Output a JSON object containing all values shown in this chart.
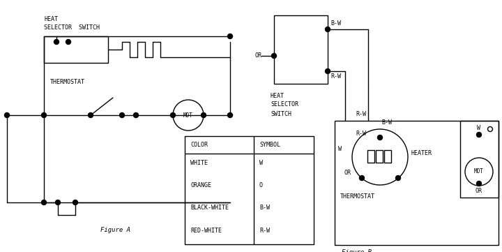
{
  "bg": "#ffffff",
  "lc": "#000000",
  "lw": 1.0,
  "fs": 6.0,
  "fig_a_label": "Figure A",
  "fig_b_label": "Figure B",
  "table_colors": [
    "WHITE",
    "ORANGE",
    "BLACK-WHITE",
    "RED-WHITE"
  ],
  "table_symbols": [
    "W",
    "O",
    "B-W",
    "R-W"
  ]
}
